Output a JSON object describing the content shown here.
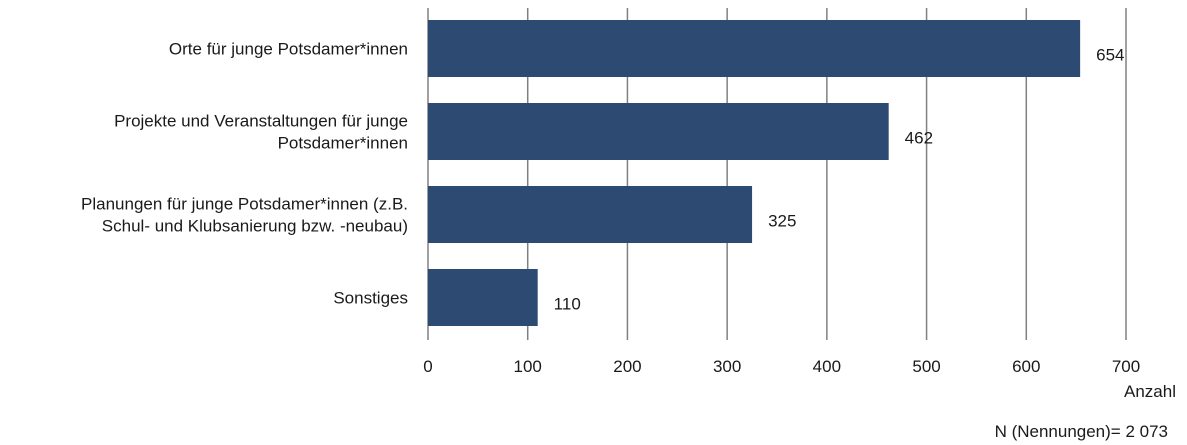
{
  "chart_data": {
    "type": "bar",
    "orientation": "horizontal",
    "categories": [
      [
        "Orte für junge Potsdamer*innen"
      ],
      [
        "Projekte und Veranstaltungen für junge",
        "Potsdamer*innen"
      ],
      [
        "Planungen für junge Potsdamer*innen (z.B.",
        "Schul- und Klubsanierung bzw. -neubau)"
      ],
      [
        "Sonstiges"
      ]
    ],
    "values": [
      654,
      462,
      325,
      110
    ],
    "data_labels": [
      "654",
      "462",
      "325",
      "110"
    ],
    "xlim": [
      0,
      700
    ],
    "xticks": [
      0,
      100,
      200,
      300,
      400,
      500,
      600,
      700
    ],
    "xlabel": "Anzahl",
    "grid": true,
    "bar_color": "#2d4b72",
    "note": "N (Nennungen)= 2 073"
  }
}
